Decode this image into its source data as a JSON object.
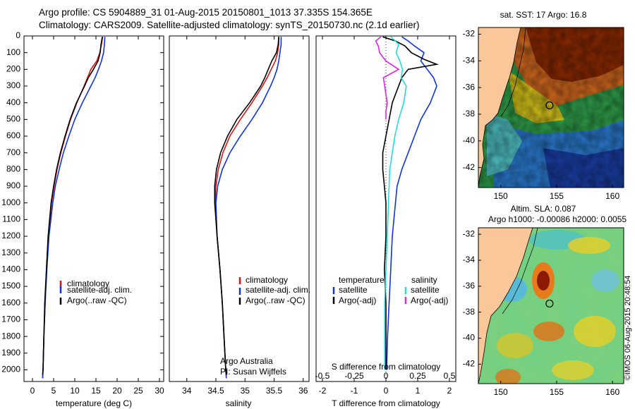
{
  "header": {
    "title_line1": "Argo profile: CS 5904889_31 01-Aug-2015 20150801_1013 37.335S 154.365E",
    "title_line2": "Climatology: CARS2009. Satellite-adjusted climatology: synTS_20150730.nc (2.1d earlier)"
  },
  "colors": {
    "climatology": "#dd1111",
    "satellite": "#1133dd",
    "argo": "#000000",
    "salinity_sat": "#22dddd",
    "salinity_argo": "#dd22dd",
    "land": "#f9c79a"
  },
  "footer": {
    "credit_line1": "Argo Australia",
    "credit_line2": "PI: Susan Wijffels",
    "stamp": "©IMOS 06-Aug-2015 20:48:54"
  },
  "chart_data": [
    {
      "type": "line",
      "id": "temperature",
      "xlabel": "temperature (deg C)",
      "ylabel": "",
      "xlim": [
        -2,
        31
      ],
      "ylim": [
        2070,
        0
      ],
      "xticks": [
        0,
        5,
        10,
        15,
        20,
        25,
        30
      ],
      "yticks": [
        0,
        100,
        200,
        300,
        400,
        500,
        600,
        700,
        800,
        900,
        1000,
        1100,
        1200,
        1300,
        1400,
        1500,
        1600,
        1700,
        1800,
        1900,
        2000
      ],
      "legend": [
        "climatology",
        "satellite-adj. clim.",
        "Argo(..raw -QC)"
      ],
      "series": [
        {
          "name": "climatology",
          "color": "#dd1111",
          "depth": [
            5,
            50,
            100,
            150,
            200,
            250,
            300,
            400,
            500,
            600,
            700,
            800,
            900,
            1000,
            1200,
            1400,
            1600,
            1800,
            2000,
            2050
          ],
          "values": [
            16.6,
            16.3,
            15.9,
            15.2,
            13.8,
            13.0,
            12.2,
            10.5,
            9.0,
            7.8,
            6.7,
            5.8,
            5.1,
            4.5,
            3.8,
            3.3,
            3.0,
            2.7,
            2.5,
            2.4
          ]
        },
        {
          "name": "satellite-adj. clim.",
          "color": "#1133dd",
          "depth": [
            5,
            50,
            100,
            150,
            200,
            250,
            300,
            400,
            500,
            600,
            700,
            800,
            900,
            1000,
            1200,
            1400,
            1600,
            1800,
            2000,
            2050
          ],
          "values": [
            17.1,
            17.0,
            16.8,
            16.3,
            15.6,
            14.8,
            13.8,
            11.8,
            10.0,
            8.6,
            7.3,
            6.3,
            5.4,
            4.8,
            3.9,
            3.4,
            3.0,
            2.7,
            2.5,
            2.4
          ]
        },
        {
          "name": "Argo(..raw -QC)",
          "color": "#000000",
          "depth": [
            5,
            50,
            100,
            150,
            200,
            250,
            300,
            400,
            500,
            600,
            700,
            800,
            900,
            1000,
            1200,
            1400,
            1600,
            1800,
            2000,
            2030
          ],
          "values": [
            16.5,
            16.2,
            16.0,
            15.5,
            14.4,
            13.2,
            12.3,
            10.4,
            8.9,
            7.7,
            6.6,
            5.7,
            5.0,
            4.4,
            3.7,
            3.3,
            2.9,
            2.7,
            2.5,
            2.4
          ]
        }
      ]
    },
    {
      "type": "line",
      "id": "salinity",
      "xlabel": "salinity",
      "xlim": [
        33.7,
        36.1
      ],
      "ylim": [
        2070,
        0
      ],
      "xticks": [
        34,
        34.5,
        35,
        35.5,
        36
      ],
      "legend": [
        "climatology",
        "satellite-adj. clim.",
        "Argo(..raw -QC)"
      ],
      "series": [
        {
          "name": "climatology",
          "color": "#dd1111",
          "depth": [
            5,
            50,
            100,
            150,
            200,
            250,
            300,
            400,
            500,
            600,
            700,
            800,
            900,
            1000,
            1200,
            1400,
            1600,
            1800,
            2000,
            2050
          ],
          "values": [
            35.58,
            35.58,
            35.56,
            35.52,
            35.45,
            35.38,
            35.3,
            35.12,
            34.92,
            34.74,
            34.62,
            34.54,
            34.5,
            34.49,
            34.52,
            34.57,
            34.61,
            34.64,
            34.67,
            34.68
          ]
        },
        {
          "name": "satellite-adj. clim.",
          "color": "#1133dd",
          "depth": [
            5,
            50,
            100,
            150,
            200,
            250,
            300,
            400,
            500,
            600,
            700,
            800,
            900,
            1000,
            1200,
            1400,
            1600,
            1800,
            2000,
            2050
          ],
          "values": [
            35.62,
            35.62,
            35.6,
            35.58,
            35.55,
            35.5,
            35.44,
            35.3,
            35.12,
            34.92,
            34.74,
            34.61,
            34.53,
            34.5,
            34.52,
            34.57,
            34.61,
            34.64,
            34.67,
            34.68
          ]
        },
        {
          "name": "Argo(..raw -QC)",
          "color": "#000000",
          "depth": [
            5,
            50,
            100,
            150,
            200,
            250,
            300,
            400,
            500,
            600,
            700,
            800,
            900,
            1000,
            1200,
            1400,
            1600,
            1800,
            2000,
            2030
          ],
          "values": [
            35.58,
            35.57,
            35.54,
            35.46,
            35.4,
            35.34,
            35.27,
            35.08,
            34.86,
            34.7,
            34.58,
            34.51,
            34.48,
            34.48,
            34.52,
            34.57,
            34.61,
            34.64,
            34.67,
            34.68
          ]
        }
      ]
    },
    {
      "type": "line",
      "id": "difference",
      "xlabel": "T difference from climatology",
      "xlim": [
        -2.2,
        2.2
      ],
      "ylim": [
        2070,
        0
      ],
      "xticks": [
        -2,
        -1,
        0,
        1,
        2
      ],
      "xticks_top": [
        -0.5,
        -0.25,
        0,
        0.25,
        0.5
      ],
      "top_axis_label": "S difference from climatology",
      "legend_headers": [
        "temperature",
        "salinity"
      ],
      "legend": [
        "satellite",
        "Argo(-adj)",
        "satellite",
        "Argo(-adj)"
      ],
      "series": [
        {
          "name": "temperature satellite",
          "color": "#1133dd",
          "depth": [
            5,
            30,
            60,
            100,
            150,
            200,
            250,
            300,
            400,
            500,
            600,
            700,
            800,
            900,
            1000,
            1200,
            1400,
            1600,
            1800,
            2000
          ],
          "values": [
            0.5,
            0.7,
            0.9,
            1.2,
            1.1,
            1.3,
            1.5,
            1.6,
            1.4,
            1.1,
            0.9,
            0.7,
            0.5,
            0.35,
            0.3,
            0.2,
            0.15,
            0.1,
            0.05,
            0.02
          ]
        },
        {
          "name": "temperature Argo(-adj)",
          "color": "#000000",
          "depth": [
            5,
            30,
            60,
            100,
            140,
            170,
            200,
            250,
            300,
            400,
            500,
            600,
            700,
            800,
            900,
            1000,
            1200,
            1400,
            1600,
            1800,
            2000
          ],
          "values": [
            -0.1,
            0.3,
            0.6,
            0.8,
            1.2,
            1.6,
            0.7,
            0.5,
            0.4,
            0.2,
            0.1,
            0.0,
            -0.1,
            -0.1,
            -0.05,
            0.0,
            0.0,
            -0.05,
            0.0,
            0.0,
            0.0
          ]
        },
        {
          "name": "salinity satellite",
          "color": "#22dddd",
          "depth": [
            5,
            50,
            100,
            150,
            200,
            250,
            300,
            400,
            500,
            600,
            700,
            800,
            1000,
            1200,
            1400,
            1600,
            1800,
            2000
          ],
          "values": [
            0.04,
            0.1,
            0.08,
            0.11,
            0.13,
            0.12,
            0.16,
            0.14,
            0.1,
            0.07,
            0.05,
            0.03,
            0.02,
            0.01,
            0.0,
            -0.01,
            -0.01,
            -0.01
          ]
        },
        {
          "name": "salinity Argo(-adj)",
          "color": "#dd22dd",
          "depth": [
            5,
            30,
            60,
            100,
            150,
            200,
            250,
            300,
            350,
            400,
            450,
            500
          ],
          "values": [
            -0.04,
            -0.08,
            -0.06,
            -0.05,
            0.0,
            0.1,
            -0.02,
            -0.01,
            0.0,
            0.01,
            0.0,
            0.0
          ]
        }
      ]
    },
    {
      "type": "heatmap",
      "id": "sst_map",
      "title": "sat. SST: 17 Argo: 16.8",
      "xlim": [
        148,
        161
      ],
      "ylim": [
        -43.5,
        -31.5
      ],
      "xticks": [
        150,
        155,
        160
      ],
      "yticks": [
        -32,
        -34,
        -36,
        -38,
        -40,
        -42
      ],
      "marker": {
        "lon": 154.365,
        "lat": -37.335
      }
    },
    {
      "type": "heatmap",
      "id": "sla_map",
      "title_line1": "Altim. SLA: 0.087",
      "title_line2": "Argo h1000: -0.00086 h2000: 0.0055",
      "xlim": [
        148,
        161
      ],
      "ylim": [
        -43.5,
        -31.5
      ],
      "xticks": [
        150,
        155,
        160
      ],
      "yticks": [
        -32,
        -34,
        -36,
        -38,
        -40,
        -42
      ],
      "marker": {
        "lon": 154.365,
        "lat": -37.335
      }
    }
  ]
}
